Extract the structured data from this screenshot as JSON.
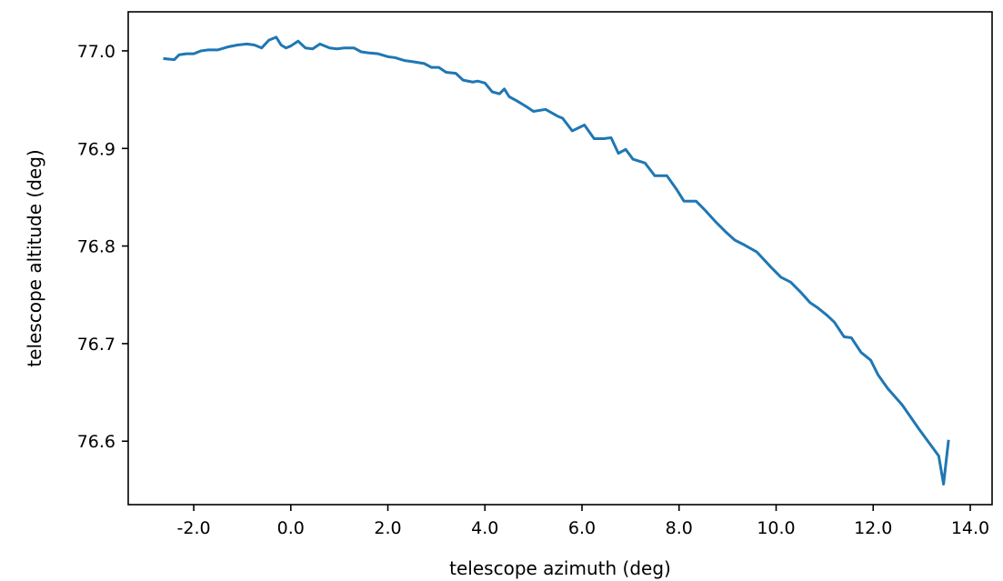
{
  "chart_data": {
    "type": "line",
    "title": "",
    "xlabel": "telescope azimuth (deg)",
    "ylabel": "telescope altitude (deg)",
    "xlim": [
      -3.35,
      14.45
    ],
    "ylim": [
      76.535,
      77.04
    ],
    "xticks": [
      -2.0,
      0.0,
      2.0,
      4.0,
      6.0,
      8.0,
      10.0,
      12.0,
      14.0
    ],
    "xtick_labels": [
      "-2.0",
      "0.0",
      "2.0",
      "4.0",
      "6.0",
      "8.0",
      "10.0",
      "12.0",
      "14.0"
    ],
    "yticks": [
      76.6,
      76.7,
      76.8,
      76.9,
      77.0
    ],
    "ytick_labels": [
      "76.6",
      "76.7",
      "76.8",
      "76.9",
      "77.0"
    ],
    "grid": false,
    "legend": false,
    "series": [
      {
        "color": "#1f77b4",
        "x": [
          -2.6,
          -2.4,
          -2.3,
          -2.15,
          -2.0,
          -1.85,
          -1.7,
          -1.5,
          -1.3,
          -1.1,
          -0.9,
          -0.75,
          -0.6,
          -0.45,
          -0.3,
          -0.2,
          -0.1,
          0.0,
          0.15,
          0.3,
          0.45,
          0.6,
          0.8,
          0.95,
          1.1,
          1.3,
          1.45,
          1.6,
          1.8,
          2.0,
          2.15,
          2.35,
          2.5,
          2.75,
          2.9,
          3.05,
          3.2,
          3.4,
          3.55,
          3.75,
          3.85,
          4.0,
          4.15,
          4.3,
          4.4,
          4.5,
          4.65,
          4.85,
          5.0,
          5.25,
          5.5,
          5.6,
          5.8,
          6.05,
          6.25,
          6.45,
          6.6,
          6.75,
          6.9,
          7.05,
          7.3,
          7.5,
          7.75,
          7.95,
          8.1,
          8.35,
          8.55,
          8.75,
          8.95,
          9.15,
          9.35,
          9.6,
          9.9,
          10.1,
          10.3,
          10.5,
          10.7,
          10.85,
          11.05,
          11.2,
          11.4,
          11.55,
          11.75,
          11.95,
          12.1,
          12.3,
          12.6,
          12.95,
          13.35,
          13.45,
          13.55
        ],
        "y": [
          76.992,
          76.991,
          76.996,
          76.997,
          76.997,
          77.0,
          77.001,
          77.001,
          77.004,
          77.006,
          77.007,
          77.006,
          77.003,
          77.011,
          77.014,
          77.006,
          77.003,
          77.005,
          77.01,
          77.003,
          77.002,
          77.007,
          77.003,
          77.002,
          77.003,
          77.003,
          76.999,
          76.998,
          76.997,
          76.994,
          76.993,
          76.99,
          76.989,
          76.987,
          76.983,
          76.983,
          76.978,
          76.977,
          76.97,
          76.968,
          76.969,
          76.967,
          76.958,
          76.956,
          76.961,
          76.953,
          76.949,
          76.943,
          76.938,
          76.94,
          76.933,
          76.931,
          76.918,
          76.924,
          76.91,
          76.91,
          76.911,
          76.895,
          76.899,
          76.889,
          76.885,
          76.872,
          76.872,
          76.858,
          76.846,
          76.846,
          76.836,
          76.825,
          76.815,
          76.806,
          76.801,
          76.794,
          76.778,
          76.768,
          76.763,
          76.753,
          76.742,
          76.737,
          76.729,
          76.722,
          76.707,
          76.706,
          76.691,
          76.683,
          76.668,
          76.654,
          76.637,
          76.612,
          76.585,
          76.556,
          76.6
        ]
      }
    ]
  }
}
